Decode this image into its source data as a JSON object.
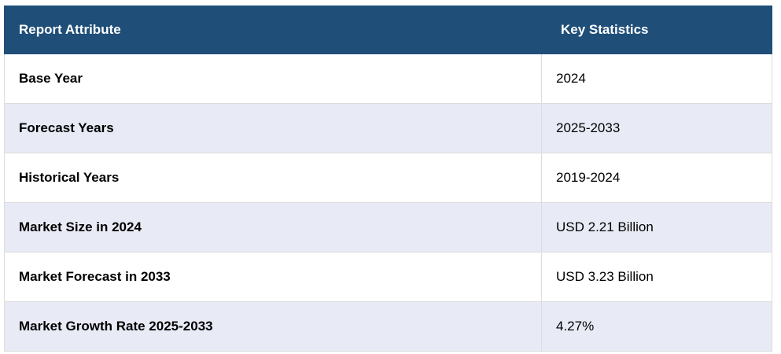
{
  "table": {
    "headers": [
      "Report Attribute",
      "Key Statistics"
    ],
    "rows": [
      {
        "attribute": "Base Year",
        "value": "2024"
      },
      {
        "attribute": "Forecast Years",
        "value": "2025-2033"
      },
      {
        "attribute": "Historical Years",
        "value": "2019-2024"
      },
      {
        "attribute": "Market Size in 2024",
        "value": "USD 2.21 Billion"
      },
      {
        "attribute": "Market Forecast in 2033",
        "value": "USD 3.23 Billion"
      },
      {
        "attribute": "Market Growth Rate 2025-2033",
        "value": "4.27%"
      }
    ],
    "colors": {
      "header_bg": "#1f4e79",
      "header_text": "#ffffff",
      "row_alt_bg": "#e8ebf5",
      "row_bg": "#ffffff",
      "border": "#dcdcdc"
    }
  }
}
